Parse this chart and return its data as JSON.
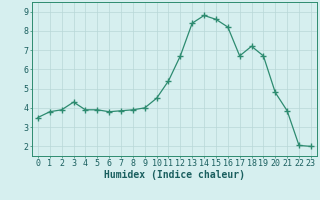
{
  "x": [
    0,
    1,
    2,
    3,
    4,
    5,
    6,
    7,
    8,
    9,
    10,
    11,
    12,
    13,
    14,
    15,
    16,
    17,
    18,
    19,
    20,
    21,
    22,
    23
  ],
  "y": [
    3.5,
    3.8,
    3.9,
    4.3,
    3.9,
    3.9,
    3.8,
    3.85,
    3.9,
    4.0,
    4.5,
    5.4,
    6.7,
    8.4,
    8.8,
    8.6,
    8.2,
    6.7,
    7.2,
    6.7,
    4.8,
    3.85,
    2.05,
    2.0
  ],
  "line_color": "#2d8b70",
  "marker": "+",
  "marker_size": 4,
  "bg_color": "#d6efef",
  "grid_color": "#b8d8d8",
  "xlabel": "Humidex (Indice chaleur)",
  "xlabel_fontsize": 7,
  "tick_fontsize": 6,
  "xlim": [
    -0.5,
    23.5
  ],
  "ylim": [
    1.5,
    9.5
  ],
  "yticks": [
    2,
    3,
    4,
    5,
    6,
    7,
    8,
    9
  ],
  "xticks": [
    0,
    1,
    2,
    3,
    4,
    5,
    6,
    7,
    8,
    9,
    10,
    11,
    12,
    13,
    14,
    15,
    16,
    17,
    18,
    19,
    20,
    21,
    22,
    23
  ]
}
